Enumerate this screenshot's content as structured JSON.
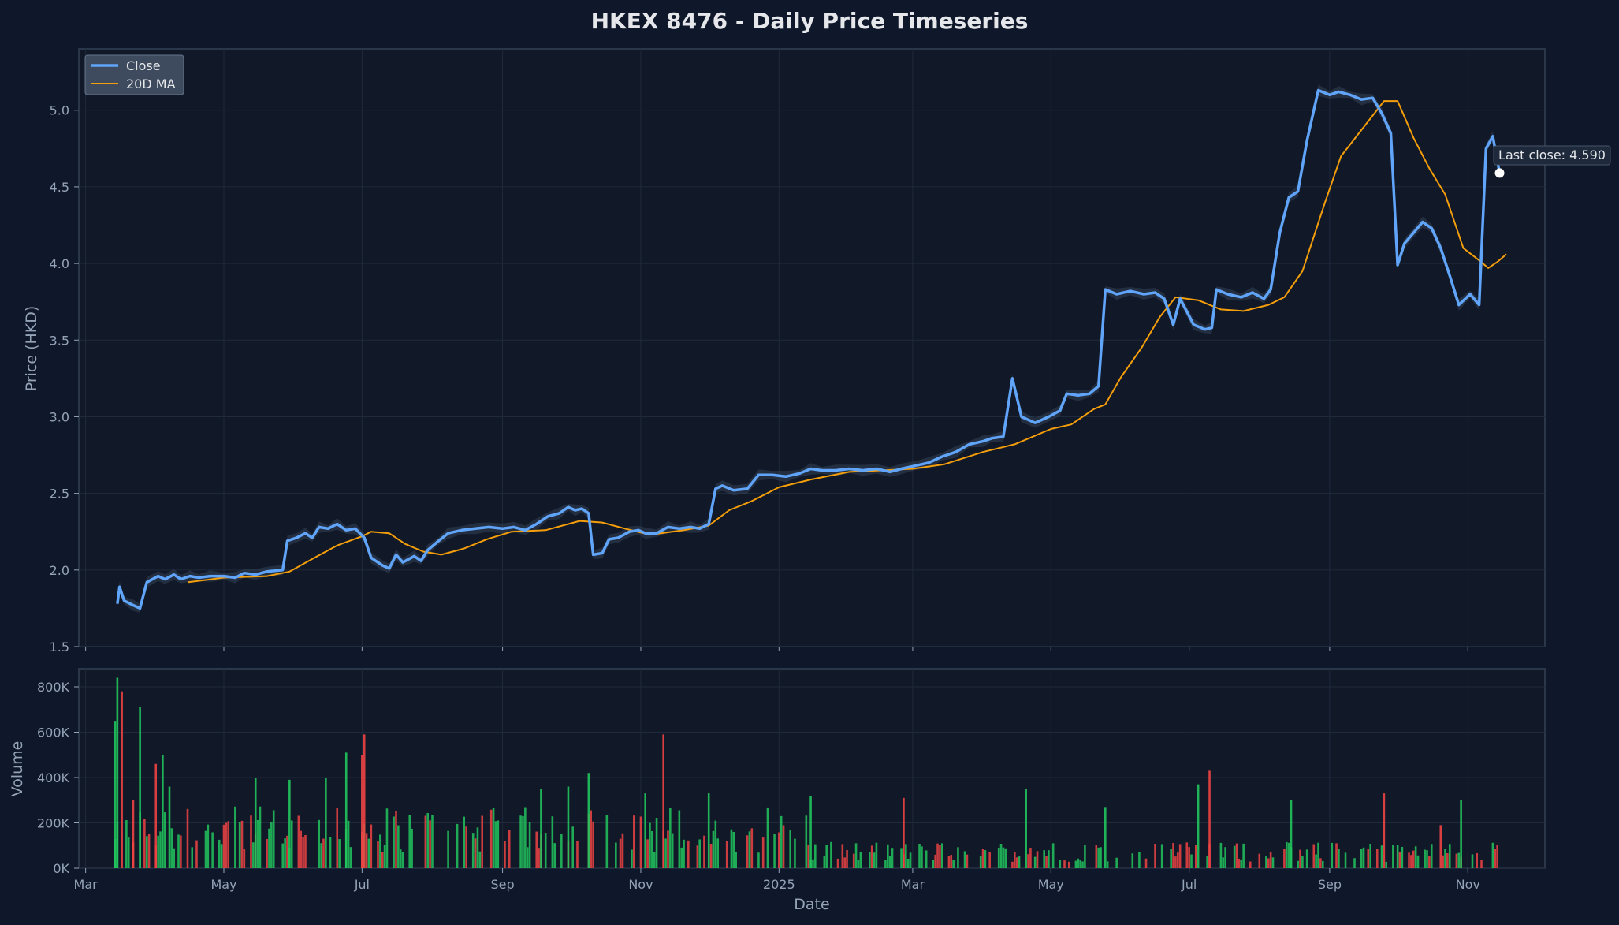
{
  "chart_data": {
    "type": "line",
    "title": "HKEX 8476 - Daily Price Timeseries",
    "price_panel": {
      "ylabel": "Price (HKD)",
      "ylim": [
        1.5,
        5.4
      ],
      "yticks": [
        "1.5",
        "2.0",
        "2.5",
        "3.0",
        "3.5",
        "4.0",
        "4.5",
        "5.0"
      ],
      "grid": true,
      "legend_position": "top-left",
      "series": [
        {
          "name": "Close",
          "color": "#60a5fa",
          "points": [
            [
              "2024-03-15",
              1.78
            ],
            [
              "2024-03-16",
              1.89
            ],
            [
              "2024-03-18",
              1.8
            ],
            [
              "2024-03-22",
              1.77
            ],
            [
              "2024-03-25",
              1.75
            ],
            [
              "2024-03-28",
              1.92
            ],
            [
              "2024-04-02",
              1.96
            ],
            [
              "2024-04-05",
              1.94
            ],
            [
              "2024-04-09",
              1.97
            ],
            [
              "2024-04-12",
              1.94
            ],
            [
              "2024-04-16",
              1.96
            ],
            [
              "2024-04-20",
              1.95
            ],
            [
              "2024-04-25",
              1.96
            ],
            [
              "2024-05-01",
              1.96
            ],
            [
              "2024-05-06",
              1.95
            ],
            [
              "2024-05-10",
              1.98
            ],
            [
              "2024-05-15",
              1.97
            ],
            [
              "2024-05-20",
              1.99
            ],
            [
              "2024-05-27",
              2.0
            ],
            [
              "2024-05-29",
              2.19
            ],
            [
              "2024-06-02",
              2.21
            ],
            [
              "2024-06-06",
              2.24
            ],
            [
              "2024-06-09",
              2.21
            ],
            [
              "2024-06-12",
              2.28
            ],
            [
              "2024-06-16",
              2.27
            ],
            [
              "2024-06-20",
              2.3
            ],
            [
              "2024-06-24",
              2.26
            ],
            [
              "2024-06-28",
              2.27
            ],
            [
              "2024-07-02",
              2.21
            ],
            [
              "2024-07-05",
              2.08
            ],
            [
              "2024-07-10",
              2.03
            ],
            [
              "2024-07-13",
              2.01
            ],
            [
              "2024-07-16",
              2.1
            ],
            [
              "2024-07-19",
              2.05
            ],
            [
              "2024-07-24",
              2.09
            ],
            [
              "2024-07-27",
              2.06
            ],
            [
              "2024-07-30",
              2.13
            ],
            [
              "2024-08-03",
              2.18
            ],
            [
              "2024-08-08",
              2.24
            ],
            [
              "2024-08-14",
              2.26
            ],
            [
              "2024-08-20",
              2.27
            ],
            [
              "2024-08-26",
              2.28
            ],
            [
              "2024-09-01",
              2.27
            ],
            [
              "2024-09-06",
              2.28
            ],
            [
              "2024-09-11",
              2.26
            ],
            [
              "2024-09-16",
              2.3
            ],
            [
              "2024-09-21",
              2.35
            ],
            [
              "2024-09-26",
              2.37
            ],
            [
              "2024-09-30",
              2.41
            ],
            [
              "2024-10-03",
              2.39
            ],
            [
              "2024-10-06",
              2.4
            ],
            [
              "2024-10-09",
              2.37
            ],
            [
              "2024-10-11",
              2.1
            ],
            [
              "2024-10-15",
              2.11
            ],
            [
              "2024-10-18",
              2.2
            ],
            [
              "2024-10-22",
              2.21
            ],
            [
              "2024-10-27",
              2.25
            ],
            [
              "2024-10-31",
              2.26
            ],
            [
              "2024-11-03",
              2.24
            ],
            [
              "2024-11-08",
              2.24
            ],
            [
              "2024-11-13",
              2.28
            ],
            [
              "2024-11-18",
              2.27
            ],
            [
              "2024-11-23",
              2.28
            ],
            [
              "2024-11-27",
              2.27
            ],
            [
              "2024-12-01",
              2.3
            ],
            [
              "2024-12-04",
              2.53
            ],
            [
              "2024-12-07",
              2.55
            ],
            [
              "2024-12-12",
              2.52
            ],
            [
              "2024-12-18",
              2.53
            ],
            [
              "2024-12-23",
              2.62
            ],
            [
              "2024-12-29",
              2.62
            ],
            [
              "2025-01-04",
              2.61
            ],
            [
              "2025-01-10",
              2.63
            ],
            [
              "2025-01-15",
              2.66
            ],
            [
              "2025-01-20",
              2.65
            ],
            [
              "2025-01-26",
              2.65
            ],
            [
              "2025-02-01",
              2.66
            ],
            [
              "2025-02-07",
              2.65
            ],
            [
              "2025-02-13",
              2.66
            ],
            [
              "2025-02-19",
              2.64
            ],
            [
              "2025-02-24",
              2.66
            ],
            [
              "2025-03-02",
              2.68
            ],
            [
              "2025-03-08",
              2.7
            ],
            [
              "2025-03-14",
              2.74
            ],
            [
              "2025-03-20",
              2.77
            ],
            [
              "2025-03-26",
              2.82
            ],
            [
              "2025-04-01",
              2.84
            ],
            [
              "2025-04-05",
              2.86
            ],
            [
              "2025-04-10",
              2.87
            ],
            [
              "2025-04-14",
              3.25
            ],
            [
              "2025-04-18",
              3.0
            ],
            [
              "2025-04-24",
              2.96
            ],
            [
              "2025-04-30",
              3.0
            ],
            [
              "2025-05-05",
              3.04
            ],
            [
              "2025-05-08",
              3.15
            ],
            [
              "2025-05-13",
              3.14
            ],
            [
              "2025-05-18",
              3.15
            ],
            [
              "2025-05-22",
              3.2
            ],
            [
              "2025-05-25",
              3.83
            ],
            [
              "2025-05-30",
              3.8
            ],
            [
              "2025-06-05",
              3.82
            ],
            [
              "2025-06-11",
              3.8
            ],
            [
              "2025-06-16",
              3.81
            ],
            [
              "2025-06-20",
              3.77
            ],
            [
              "2025-06-24",
              3.6
            ],
            [
              "2025-06-27",
              3.77
            ],
            [
              "2025-07-03",
              3.6
            ],
            [
              "2025-07-08",
              3.57
            ],
            [
              "2025-07-11",
              3.58
            ],
            [
              "2025-07-13",
              3.83
            ],
            [
              "2025-07-18",
              3.8
            ],
            [
              "2025-07-24",
              3.78
            ],
            [
              "2025-07-29",
              3.81
            ],
            [
              "2025-08-03",
              3.77
            ],
            [
              "2025-08-06",
              3.83
            ],
            [
              "2025-08-10",
              4.2
            ],
            [
              "2025-08-14",
              4.43
            ],
            [
              "2025-08-18",
              4.47
            ],
            [
              "2025-08-22",
              4.8
            ],
            [
              "2025-08-27",
              5.13
            ],
            [
              "2025-09-01",
              5.1
            ],
            [
              "2025-09-05",
              5.12
            ],
            [
              "2025-09-10",
              5.1
            ],
            [
              "2025-09-15",
              5.07
            ],
            [
              "2025-09-20",
              5.08
            ],
            [
              "2025-09-24",
              4.98
            ],
            [
              "2025-09-28",
              4.85
            ],
            [
              "2025-10-01",
              3.99
            ],
            [
              "2025-10-04",
              4.13
            ],
            [
              "2025-10-08",
              4.2
            ],
            [
              "2025-10-12",
              4.27
            ],
            [
              "2025-10-16",
              4.23
            ],
            [
              "2025-10-20",
              4.1
            ],
            [
              "2025-10-24",
              3.92
            ],
            [
              "2025-10-28",
              3.73
            ],
            [
              "2025-11-02",
              3.8
            ],
            [
              "2025-11-06",
              3.73
            ],
            [
              "2025-11-09",
              4.75
            ],
            [
              "2025-11-12",
              4.83
            ],
            [
              "2025-11-15",
              4.59
            ]
          ]
        },
        {
          "name": "20D MA",
          "color": "#f59e0b",
          "points": [
            [
              "2024-04-15",
              1.92
            ],
            [
              "2024-05-01",
              1.95
            ],
            [
              "2024-05-20",
              1.96
            ],
            [
              "2024-05-30",
              1.99
            ],
            [
              "2024-06-10",
              2.08
            ],
            [
              "2024-06-20",
              2.16
            ],
            [
              "2024-07-01",
              2.22
            ],
            [
              "2024-07-05",
              2.25
            ],
            [
              "2024-07-13",
              2.24
            ],
            [
              "2024-07-20",
              2.17
            ],
            [
              "2024-07-28",
              2.12
            ],
            [
              "2024-08-05",
              2.1
            ],
            [
              "2024-08-15",
              2.14
            ],
            [
              "2024-08-25",
              2.2
            ],
            [
              "2024-09-05",
              2.25
            ],
            [
              "2024-09-20",
              2.26
            ],
            [
              "2024-10-05",
              2.32
            ],
            [
              "2024-10-15",
              2.31
            ],
            [
              "2024-10-25",
              2.27
            ],
            [
              "2024-11-05",
              2.23
            ],
            [
              "2024-11-20",
              2.26
            ],
            [
              "2024-12-01",
              2.29
            ],
            [
              "2024-12-10",
              2.39
            ],
            [
              "2024-12-20",
              2.45
            ],
            [
              "2025-01-01",
              2.54
            ],
            [
              "2025-01-15",
              2.59
            ],
            [
              "2025-02-01",
              2.64
            ],
            [
              "2025-02-15",
              2.65
            ],
            [
              "2025-03-01",
              2.66
            ],
            [
              "2025-03-15",
              2.69
            ],
            [
              "2025-04-01",
              2.77
            ],
            [
              "2025-04-15",
              2.82
            ],
            [
              "2025-05-01",
              2.92
            ],
            [
              "2025-05-10",
              2.95
            ],
            [
              "2025-05-20",
              3.05
            ],
            [
              "2025-05-25",
              3.08
            ],
            [
              "2025-06-01",
              3.26
            ],
            [
              "2025-06-10",
              3.45
            ],
            [
              "2025-06-18",
              3.65
            ],
            [
              "2025-06-25",
              3.78
            ],
            [
              "2025-07-05",
              3.76
            ],
            [
              "2025-07-15",
              3.7
            ],
            [
              "2025-07-25",
              3.69
            ],
            [
              "2025-08-05",
              3.73
            ],
            [
              "2025-08-12",
              3.78
            ],
            [
              "2025-08-20",
              3.95
            ],
            [
              "2025-08-30",
              4.4
            ],
            [
              "2025-09-06",
              4.7
            ],
            [
              "2025-09-15",
              4.87
            ],
            [
              "2025-09-25",
              5.06
            ],
            [
              "2025-10-01",
              5.06
            ],
            [
              "2025-10-08",
              4.82
            ],
            [
              "2025-10-15",
              4.62
            ],
            [
              "2025-10-22",
              4.45
            ],
            [
              "2025-10-30",
              4.1
            ],
            [
              "2025-11-06",
              4.02
            ],
            [
              "2025-11-10",
              3.97
            ],
            [
              "2025-11-14",
              4.01
            ],
            [
              "2025-11-18",
              4.06
            ]
          ]
        }
      ],
      "annotation": {
        "label": "Last close: 4.590",
        "date": "2025-11-15",
        "value": 4.59
      }
    },
    "volume_panel": {
      "ylabel": "Volume",
      "ylim": [
        0,
        880000
      ],
      "yticks": [
        "0K",
        "200K",
        "400K",
        "600K",
        "800K"
      ],
      "up_color": "#22c55e",
      "down_color": "#ef4444",
      "spikes": [
        [
          "2024-03-14",
          650000,
          "up"
        ],
        [
          "2024-03-15",
          840000,
          "up"
        ],
        [
          "2024-03-17",
          780000,
          "down"
        ],
        [
          "2024-03-22",
          300000,
          "down"
        ],
        [
          "2024-03-25",
          710000,
          "up"
        ],
        [
          "2024-04-01",
          460000,
          "down"
        ],
        [
          "2024-04-04",
          500000,
          "up"
        ],
        [
          "2024-04-07",
          360000,
          "up"
        ],
        [
          "2024-05-15",
          400000,
          "up"
        ],
        [
          "2024-05-30",
          390000,
          "up"
        ],
        [
          "2024-06-15",
          400000,
          "up"
        ],
        [
          "2024-06-24",
          510000,
          "up"
        ],
        [
          "2024-07-02",
          590000,
          "down"
        ],
        [
          "2024-07-01",
          500000,
          "down"
        ],
        [
          "2024-09-18",
          350000,
          "up"
        ],
        [
          "2024-09-30",
          360000,
          "up"
        ],
        [
          "2024-10-09",
          420000,
          "up"
        ],
        [
          "2024-11-11",
          590000,
          "down"
        ],
        [
          "2024-11-03",
          330000,
          "up"
        ],
        [
          "2024-12-01",
          330000,
          "up"
        ],
        [
          "2025-01-15",
          320000,
          "up"
        ],
        [
          "2025-02-25",
          310000,
          "down"
        ],
        [
          "2025-04-20",
          350000,
          "up"
        ],
        [
          "2025-05-25",
          270000,
          "up"
        ],
        [
          "2025-07-05",
          370000,
          "up"
        ],
        [
          "2025-07-10",
          430000,
          "down"
        ],
        [
          "2025-08-15",
          300000,
          "up"
        ],
        [
          "2025-09-25",
          330000,
          "down"
        ],
        [
          "2025-10-20",
          190000,
          "down"
        ],
        [
          "2025-10-29",
          300000,
          "up"
        ]
      ]
    },
    "x_axis": {
      "xlabel": "Date",
      "xlim": [
        "2024-02-27",
        "2025-12-05"
      ],
      "ticks": [
        {
          "date": "2024-03-01",
          "label": "Mar"
        },
        {
          "date": "2024-05-01",
          "label": "May"
        },
        {
          "date": "2024-07-01",
          "label": "Jul"
        },
        {
          "date": "2024-09-01",
          "label": "Sep"
        },
        {
          "date": "2024-11-01",
          "label": "Nov"
        },
        {
          "date": "2025-01-01",
          "label": "2025"
        },
        {
          "date": "2025-03-01",
          "label": "Mar"
        },
        {
          "date": "2025-05-01",
          "label": "May"
        },
        {
          "date": "2025-07-01",
          "label": "Jul"
        },
        {
          "date": "2025-09-01",
          "label": "Sep"
        },
        {
          "date": "2025-11-01",
          "label": "Nov"
        }
      ]
    }
  }
}
